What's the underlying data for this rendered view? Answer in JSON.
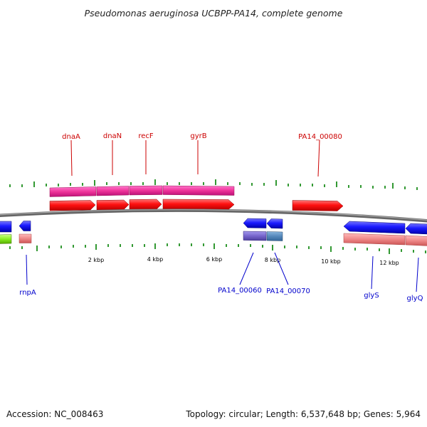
{
  "title": "Pseudomonas aeruginosa UCBPP-PA14, complete genome",
  "footer": {
    "accession": "Accession: NC_008463",
    "summary": "Topology: circular; Length: 6,537,648 bp; Genes: 5,964"
  },
  "colors": {
    "backbone": "#888888",
    "gene_forward": "#ff1111",
    "gene_reverse": "#1a1aff",
    "cds_forward": "#ee3399",
    "cds_reverse": "#ee8888",
    "cds_reverse_purple": "#7766cc",
    "cds_reverse_steel": "#5588bb",
    "rna_green": "#88ee22",
    "ticks": "#339933",
    "label_forward": "#cc0000",
    "label_reverse": "#0000cc"
  },
  "scale": {
    "unit": "kbp",
    "labels": [
      "2 kbp",
      "4 kbp",
      "6 kbp",
      "8 kbp",
      "10 kbp",
      "12 kbp"
    ],
    "label_values_kbp": [
      2,
      4,
      6,
      8,
      10,
      12
    ]
  },
  "genes": {
    "forward": [
      "dnaA",
      "dnaN",
      "recF",
      "gyrB",
      "PA14_00080"
    ],
    "reverse": [
      "rnpA",
      "PA14_00060",
      "PA14_00070",
      "glyS",
      "glyQ"
    ]
  }
}
